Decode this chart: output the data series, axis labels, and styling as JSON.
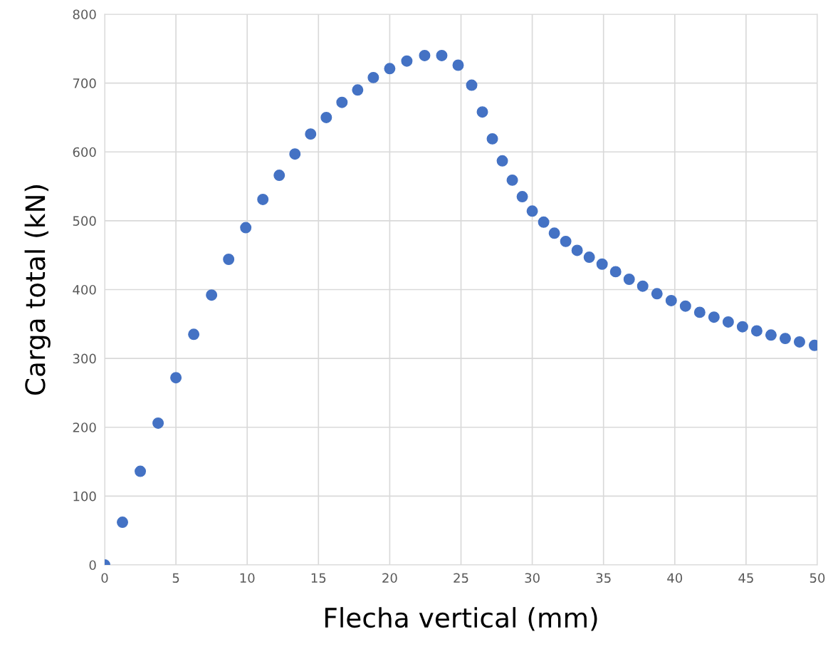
{
  "chart_data": {
    "type": "scatter",
    "xlabel": "Flecha vertical (mm)",
    "ylabel": "Carga total (kN)",
    "x": [
      0,
      1.25,
      2.5,
      3.75,
      5.0,
      6.25,
      7.5,
      8.7,
      9.9,
      11.1,
      12.25,
      13.35,
      14.45,
      15.55,
      16.65,
      17.75,
      18.85,
      20.0,
      21.2,
      22.45,
      23.65,
      24.8,
      25.75,
      26.5,
      27.2,
      27.9,
      28.6,
      29.3,
      30.0,
      30.8,
      31.55,
      32.35,
      33.15,
      34.0,
      34.9,
      35.85,
      36.8,
      37.75,
      38.75,
      39.75,
      40.75,
      41.75,
      42.75,
      43.75,
      44.75,
      45.75,
      46.75,
      47.75,
      48.75,
      49.8
    ],
    "series": [
      {
        "color": "#4472c4",
        "values": [
          0,
          62,
          136,
          206,
          272,
          335,
          392,
          444,
          490,
          531,
          566,
          597,
          626,
          650,
          672,
          690,
          708,
          721,
          732,
          740,
          740,
          726,
          697,
          658,
          619,
          587,
          559,
          535,
          514,
          498,
          482,
          470,
          457,
          447,
          437,
          426,
          415,
          405,
          394,
          384,
          376,
          367,
          360,
          353,
          346,
          340,
          334,
          329,
          324,
          319
        ]
      }
    ],
    "xlim": [
      0,
      50
    ],
    "xticks": [
      0,
      5,
      10,
      15,
      20,
      25,
      30,
      35,
      40,
      45,
      50
    ],
    "ylim": [
      0,
      800
    ],
    "yticks": [
      0,
      100,
      200,
      300,
      400,
      500,
      600,
      700,
      800
    ],
    "grid": true,
    "marker": "circle",
    "legend": false
  }
}
